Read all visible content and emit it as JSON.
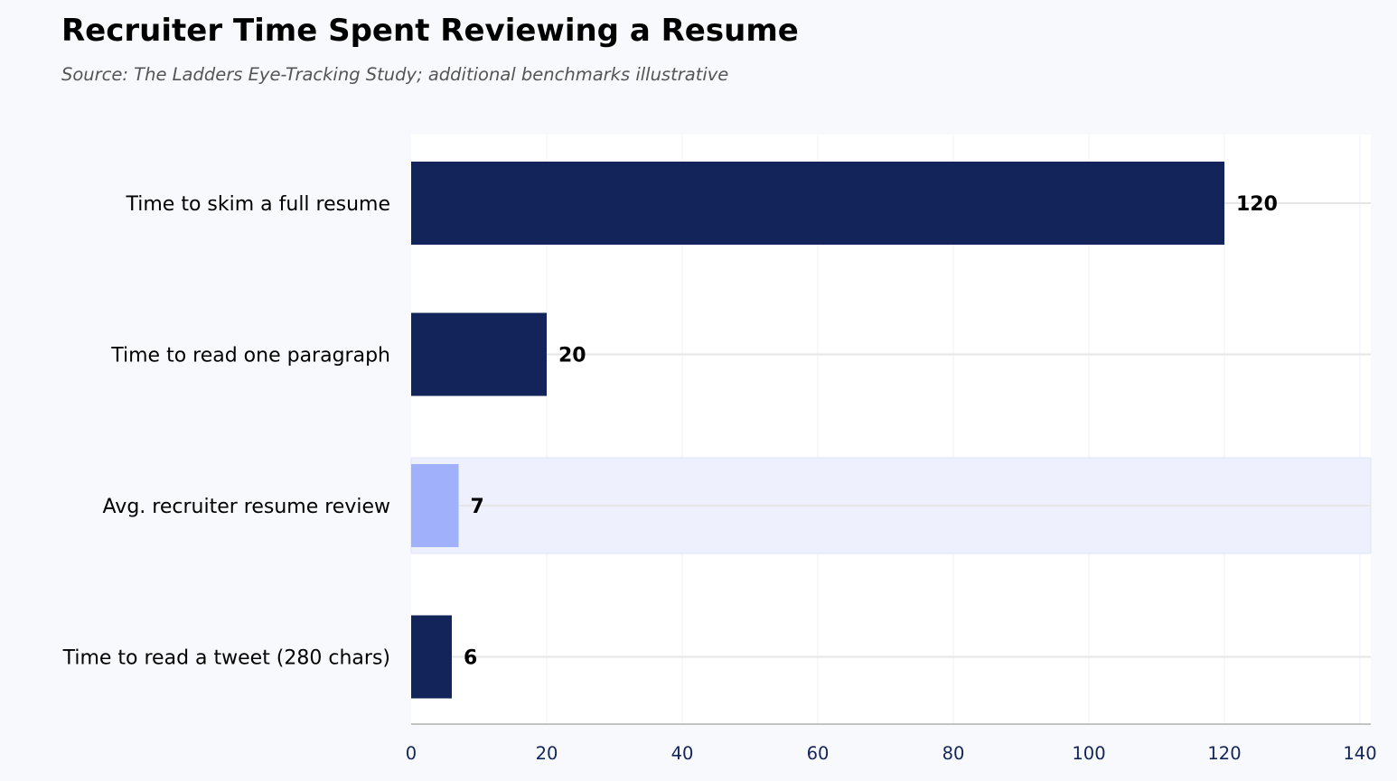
{
  "chart_data": {
    "type": "bar",
    "orientation": "horizontal",
    "title": "Recruiter Time Spent Reviewing a Resume",
    "subtitle": "Source: The Ladders Eye-Tracking Study; additional benchmarks illustrative",
    "xlabel": "",
    "ylabel": "",
    "categories": [
      "Time to skim a full resume",
      "Time to read one paragraph",
      "Avg. recruiter resume review",
      "Time to read a tweet (280 chars)"
    ],
    "values": [
      120,
      20,
      7,
      6
    ],
    "highlighted_category": "Avg. recruiter resume review",
    "xlim": [
      0,
      140
    ],
    "xticks": [
      0,
      20,
      40,
      60,
      80,
      100,
      120,
      140
    ],
    "grid": true,
    "colors": {
      "bar": "#13245b",
      "highlight_bar": "#a0b0fb",
      "highlight_band": "#eef1fd",
      "plot_background": "#ffffff",
      "page_background": "#f7f9fc",
      "tick_label": "#13245b",
      "value_label": "#000000"
    }
  }
}
